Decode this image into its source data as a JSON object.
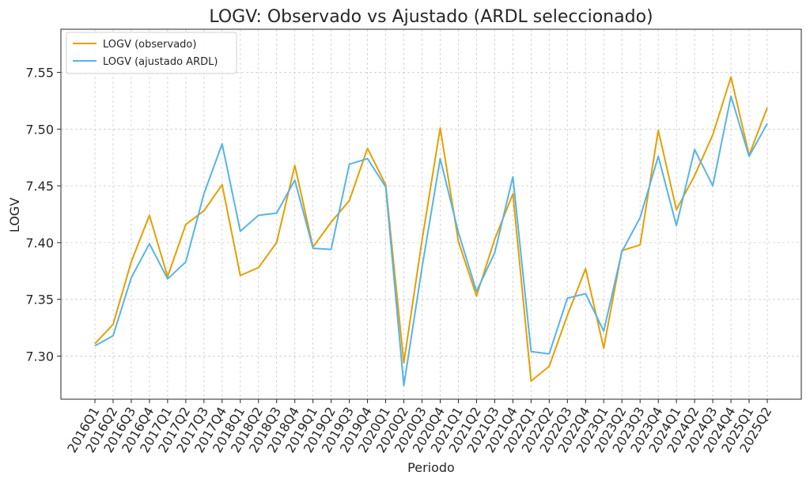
{
  "chart_data": {
    "type": "line",
    "title": "LOGV: Observado vs Ajustado (ARDL seleccionado)",
    "xlabel": "Periodo",
    "ylabel": "LOGV",
    "ylim": [
      7.262,
      7.588
    ],
    "yticks": [
      7.3,
      7.35,
      7.4,
      7.45,
      7.5,
      7.55
    ],
    "ytick_labels": [
      "7.30",
      "7.35",
      "7.40",
      "7.45",
      "7.50",
      "7.55"
    ],
    "grid": true,
    "legend_position": "top-left",
    "categories": [
      "2016Q1",
      "2016Q2",
      "2016Q3",
      "2016Q4",
      "2017Q1",
      "2017Q2",
      "2017Q3",
      "2017Q4",
      "2018Q1",
      "2018Q2",
      "2018Q3",
      "2018Q4",
      "2019Q1",
      "2019Q2",
      "2019Q3",
      "2019Q4",
      "2020Q1",
      "2020Q2",
      "2020Q3",
      "2020Q4",
      "2021Q1",
      "2021Q2",
      "2021Q3",
      "2021Q4",
      "2022Q1",
      "2022Q2",
      "2022Q3",
      "2022Q4",
      "2023Q1",
      "2023Q2",
      "2023Q3",
      "2023Q4",
      "2024Q1",
      "2024Q2",
      "2024Q3",
      "2024Q4",
      "2025Q1",
      "2025Q2"
    ],
    "series": [
      {
        "name": "LOGV (observado)",
        "color": "#E69F00",
        "values": [
          7.311,
          7.328,
          7.383,
          7.424,
          7.37,
          7.416,
          7.428,
          7.451,
          7.371,
          7.378,
          7.4,
          7.468,
          7.396,
          7.418,
          7.437,
          7.483,
          7.451,
          7.294,
          7.402,
          7.501,
          7.401,
          7.353,
          7.403,
          7.443,
          7.278,
          7.291,
          7.336,
          7.377,
          7.307,
          7.393,
          7.398,
          7.499,
          7.429,
          7.459,
          7.495,
          7.546,
          7.477,
          7.519
        ]
      },
      {
        "name": "LOGV (ajustado ARDL)",
        "color": "#56B4E9",
        "values": [
          7.309,
          7.318,
          7.369,
          7.399,
          7.368,
          7.383,
          7.443,
          7.487,
          7.41,
          7.424,
          7.426,
          7.455,
          7.395,
          7.394,
          7.469,
          7.474,
          7.449,
          7.274,
          7.378,
          7.474,
          7.409,
          7.357,
          7.391,
          7.458,
          7.304,
          7.302,
          7.351,
          7.355,
          7.322,
          7.392,
          7.422,
          7.476,
          7.415,
          7.482,
          7.45,
          7.529,
          7.476,
          7.505
        ]
      }
    ]
  }
}
